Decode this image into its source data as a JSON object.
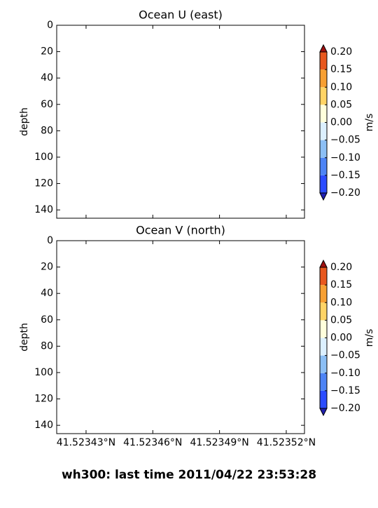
{
  "figure_title": "wh300: last time 2011/04/22 23:53:28",
  "chart_data": [
    {
      "type": "contour",
      "title": "Ocean U (east)",
      "ylabel": "depth",
      "xlim": [
        41.5234168,
        41.5235282
      ],
      "xticks": [
        41.52343,
        41.52346,
        41.52349,
        41.52352
      ],
      "ylim": [
        146.3,
        0
      ],
      "yticks": [
        0,
        20,
        40,
        60,
        80,
        100,
        120,
        140
      ],
      "colorbar": {
        "label": "m/s",
        "ticks": [
          {
            "value": -0.2,
            "label": "−0.20"
          },
          {
            "value": -0.15,
            "label": "−0.15"
          },
          {
            "value": -0.1,
            "label": "−0.10"
          },
          {
            "value": -0.05,
            "label": "−0.05"
          },
          {
            "value": 0,
            "label": "0.00"
          },
          {
            "value": 0.05,
            "label": "0.05"
          },
          {
            "value": 0.1,
            "label": "0.10"
          },
          {
            "value": 0.15,
            "label": "0.15"
          },
          {
            "value": 0.2,
            "label": "0.20"
          }
        ],
        "colors": [
          "#2b4cff",
          "#4d84f5",
          "#8cbff5",
          "#dcf0ff",
          "#ffffdc",
          "#ffd466",
          "#f7a033",
          "#e8581e"
        ],
        "under_color": "#2020b0",
        "over_color": "#a01010"
      }
    },
    {
      "type": "contour",
      "title": "Ocean V (north)",
      "ylabel": "depth",
      "xlim": [
        41.5234168,
        41.5235282
      ],
      "xticks": [
        {
          "value": 41.52343,
          "label": "41.52343°N"
        },
        {
          "value": 41.52346,
          "label": "41.52346°N"
        },
        {
          "value": 41.52349,
          "label": "41.52349°N"
        },
        {
          "value": 41.52352,
          "label": "41.52352°N"
        }
      ],
      "ylim": [
        146.3,
        0
      ],
      "yticks": [
        0,
        20,
        40,
        60,
        80,
        100,
        120,
        140
      ],
      "colorbar": {
        "label": "m/s",
        "ticks": [
          {
            "value": -0.2,
            "label": "−0.20"
          },
          {
            "value": -0.15,
            "label": "−0.15"
          },
          {
            "value": -0.1,
            "label": "−0.10"
          },
          {
            "value": -0.05,
            "label": "−0.05"
          },
          {
            "value": 0,
            "label": "0.00"
          },
          {
            "value": 0.05,
            "label": "0.05"
          },
          {
            "value": 0.1,
            "label": "0.10"
          },
          {
            "value": 0.15,
            "label": "0.15"
          },
          {
            "value": 0.2,
            "label": "0.20"
          }
        ],
        "colors": [
          "#2b4cff",
          "#4d84f5",
          "#8cbff5",
          "#dcf0ff",
          "#ffffdc",
          "#ffd466",
          "#f7a033",
          "#e8581e"
        ],
        "under_color": "#2020b0",
        "over_color": "#a01010"
      }
    }
  ]
}
